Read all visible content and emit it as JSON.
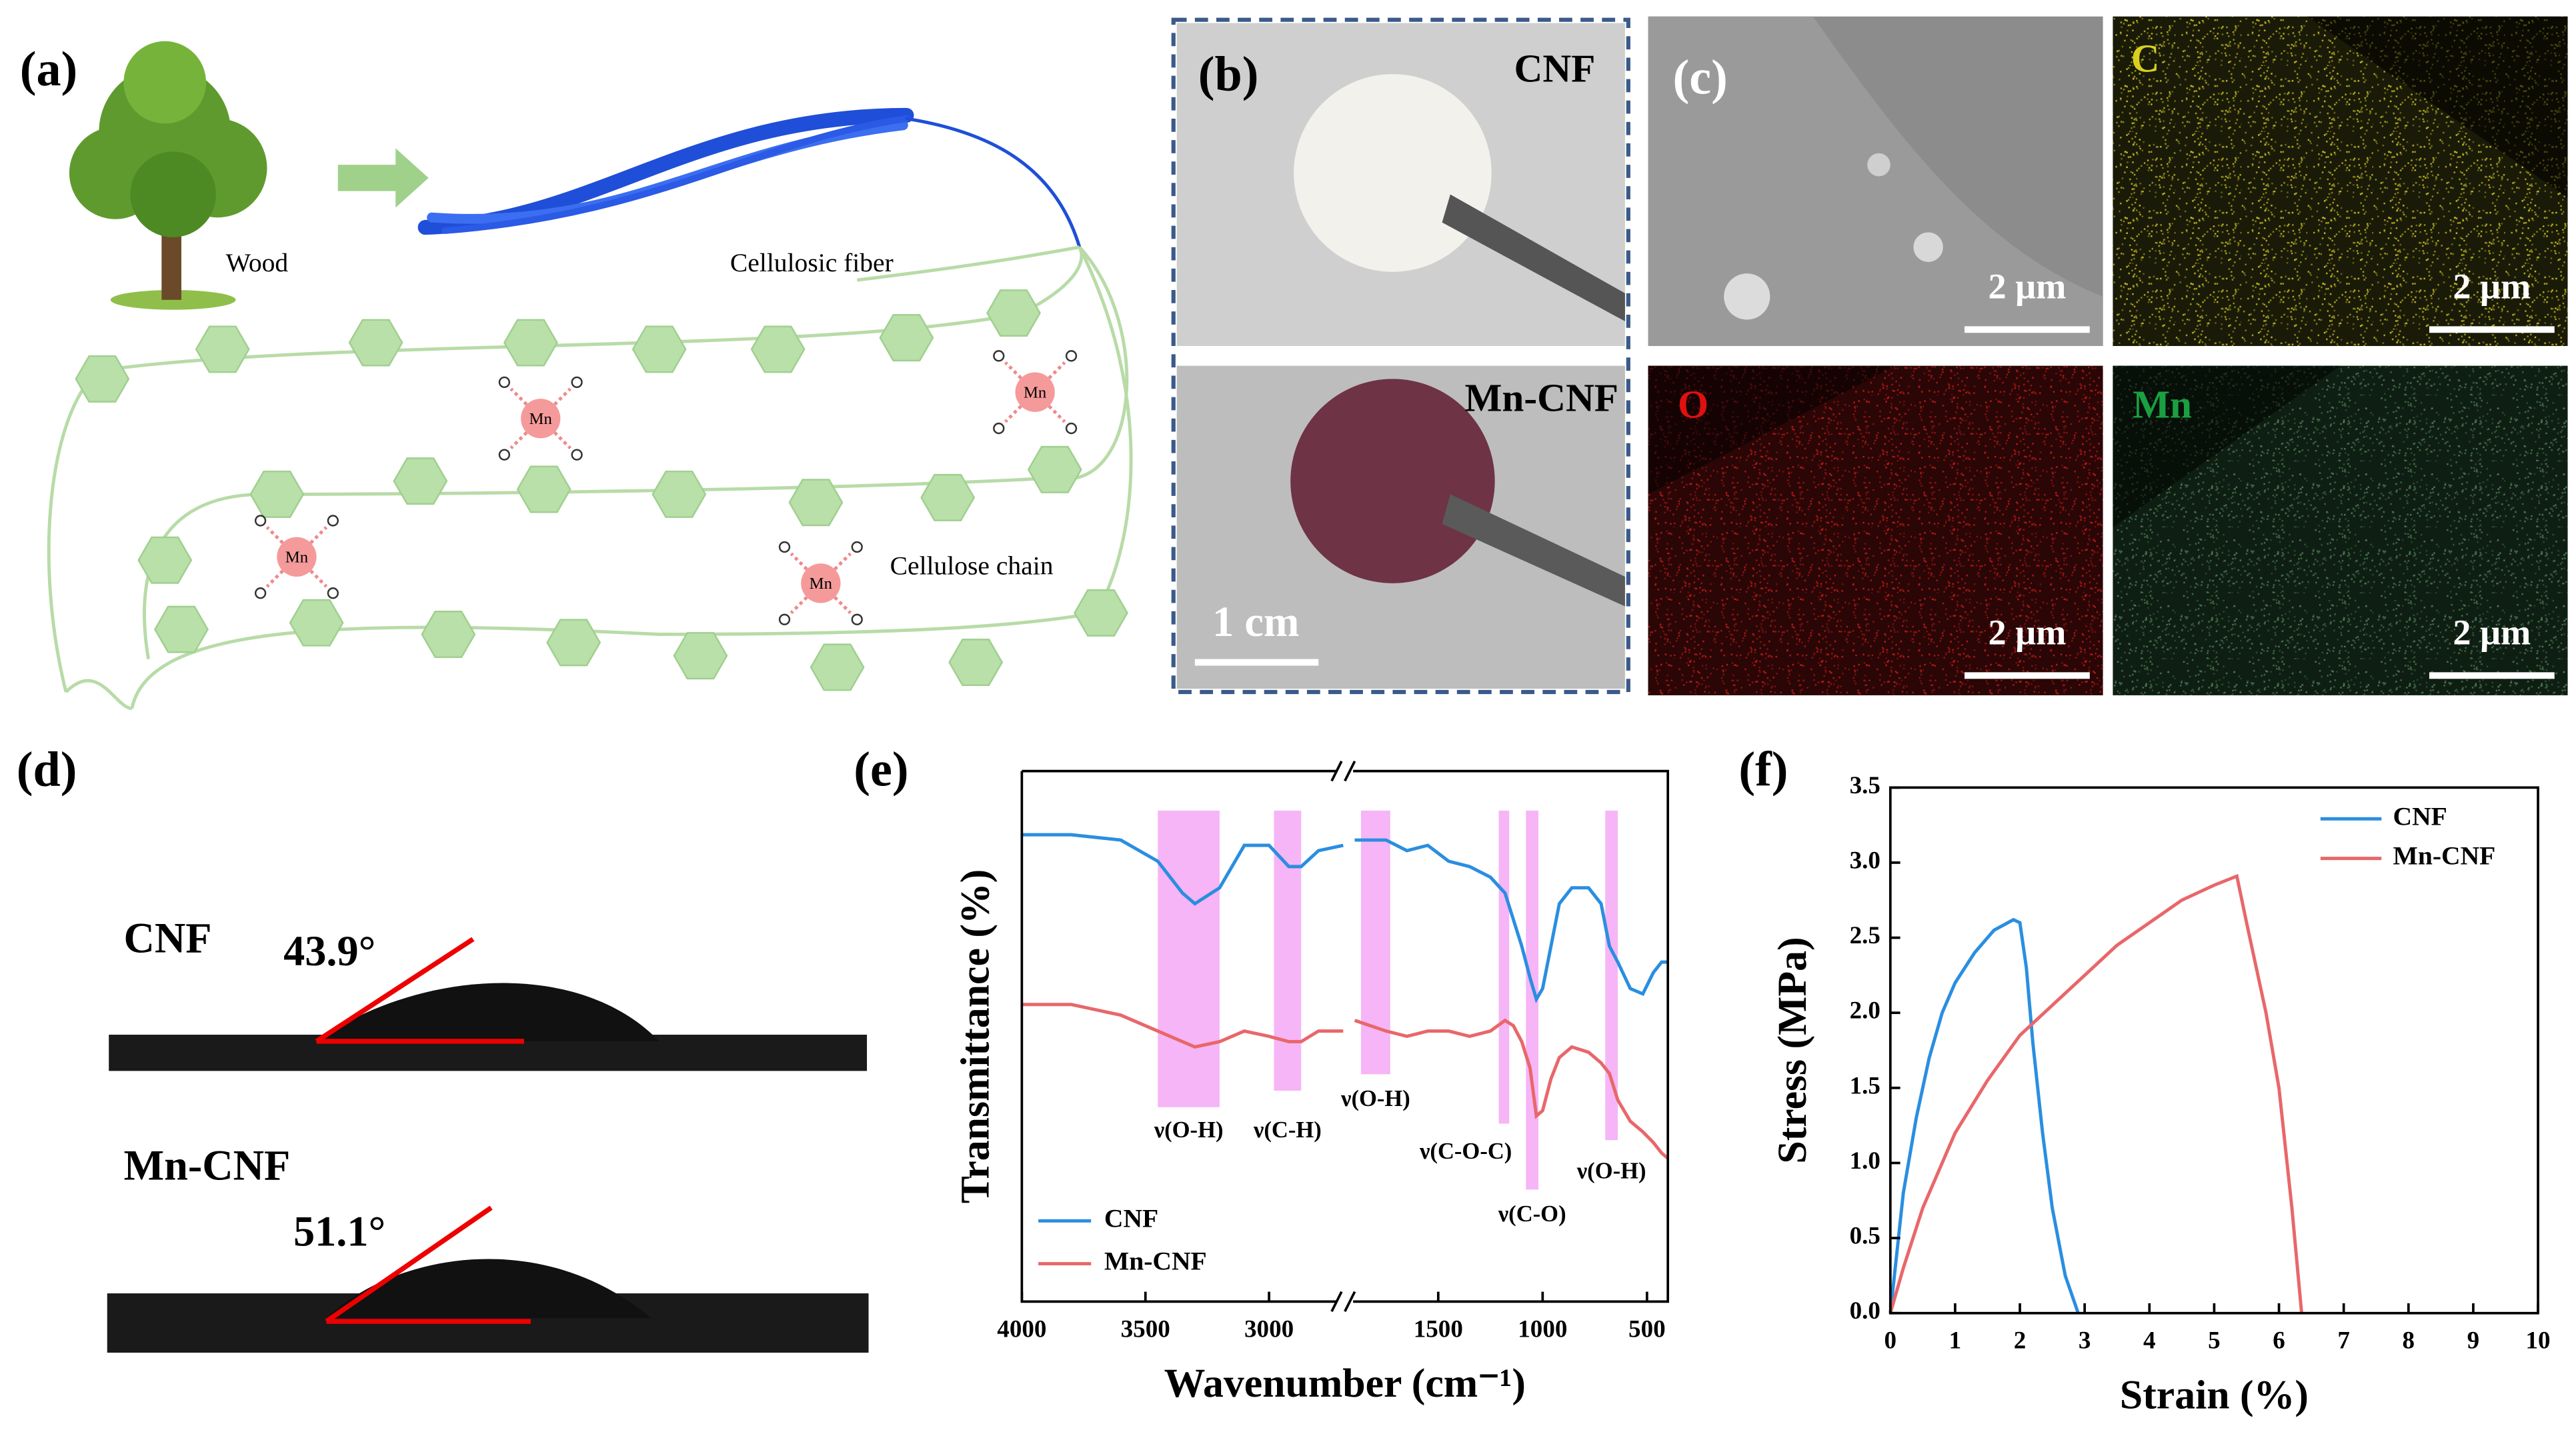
{
  "panels": {
    "a": {
      "label": "(a)",
      "wood": "Wood",
      "fiber": "Cellulosic fiber",
      "chain": "Cellulose chain",
      "ion": "Mn"
    },
    "b": {
      "label": "(b)",
      "top": "CNF",
      "bottom": "Mn-CNF",
      "scale": "1 cm"
    },
    "c": {
      "label": "(c)",
      "maps": [
        "C",
        "O",
        "Mn"
      ],
      "scale": "2 μm"
    },
    "d": {
      "label": "(d)",
      "samples": [
        {
          "name": "CNF",
          "angle": "43.9°"
        },
        {
          "name": "Mn-CNF",
          "angle": "51.1°"
        }
      ]
    },
    "e": {
      "label": "(e)"
    },
    "f": {
      "label": "(f)"
    }
  },
  "chart_data": [
    {
      "type": "line",
      "xlabel": "Wavenumber (cm⁻¹)",
      "ylabel": "Transmittance (%)",
      "xlim": [
        [
          4000,
          2700
        ],
        [
          1900,
          400
        ]
      ],
      "ylim": [
        0,
        100
      ],
      "xticks": [
        4000,
        3500,
        3000,
        1500,
        1000,
        500
      ],
      "legend": "lower left",
      "bands": [
        {
          "label": "ν(O-H)",
          "range": [
            3450,
            3200
          ]
        },
        {
          "label": "ν(C-H)",
          "range": [
            2980,
            2870
          ]
        },
        {
          "label": "ν(O-H)",
          "range": [
            1870,
            1730
          ]
        },
        {
          "label": "ν(C-O-C)",
          "range": [
            1210,
            1160
          ]
        },
        {
          "label": "ν(C-O)",
          "range": [
            1080,
            1020
          ]
        },
        {
          "label": "ν(O-H)",
          "range": [
            700,
            640
          ]
        }
      ],
      "x": [
        4000,
        3800,
        3600,
        3450,
        3350,
        3300,
        3200,
        3100,
        3000,
        2920,
        2870,
        2800,
        2700,
        null,
        1900,
        1750,
        1650,
        1550,
        1450,
        1350,
        1250,
        1180,
        1140,
        1100,
        1060,
        1030,
        1000,
        960,
        920,
        860,
        780,
        720,
        680,
        640,
        580,
        520,
        470,
        430,
        400
      ],
      "series": [
        {
          "name": "CNF",
          "color": "#2a8ee0",
          "values": [
            88,
            88,
            87,
            83,
            77,
            75,
            78,
            86,
            86,
            82,
            82,
            85,
            86,
            null,
            87,
            87,
            85,
            86,
            83,
            82,
            80,
            77,
            72,
            67,
            61,
            57,
            59,
            67,
            75,
            78,
            78,
            75,
            67,
            64,
            59,
            58,
            62,
            64,
            64
          ]
        },
        {
          "name": "Mn-CNF",
          "color": "#e8676a",
          "values": [
            56,
            56,
            54,
            51,
            49,
            48,
            49,
            51,
            50,
            49,
            49,
            51,
            51,
            null,
            53,
            51,
            50,
            51,
            51,
            50,
            51,
            53,
            52,
            49,
            44,
            35,
            36,
            42,
            46,
            48,
            47,
            45,
            43,
            38,
            34,
            32,
            30,
            28,
            27
          ]
        }
      ]
    },
    {
      "type": "line",
      "xlabel": "Strain (%)",
      "ylabel": "Stress  (MPa)",
      "xlim": [
        0,
        10
      ],
      "ylim": [
        0,
        3.5
      ],
      "xticks": [
        0,
        1,
        2,
        3,
        4,
        5,
        6,
        7,
        8,
        9,
        10
      ],
      "yticks": [
        {
          "value": 0,
          "label": "0.0"
        },
        0.5,
        {
          "value": 1,
          "label": "1.0"
        },
        1.5,
        {
          "value": 2,
          "label": "2.0"
        },
        2.5,
        {
          "value": 3,
          "label": "3.0"
        },
        3.5
      ],
      "legend": "upper right",
      "series": [
        {
          "name": "CNF",
          "color": "#2a8ee0",
          "x": [
            0,
            0.1,
            0.2,
            0.4,
            0.6,
            0.8,
            1.0,
            1.3,
            1.6,
            1.9,
            2.0,
            2.1,
            2.2,
            2.35,
            2.5,
            2.7,
            2.9
          ],
          "values": [
            0,
            0.4,
            0.8,
            1.3,
            1.7,
            2.0,
            2.2,
            2.4,
            2.55,
            2.62,
            2.6,
            2.3,
            1.8,
            1.2,
            0.7,
            0.25,
            0
          ]
        },
        {
          "name": "Mn-CNF",
          "color": "#e8676a",
          "x": [
            0,
            0.2,
            0.5,
            1,
            1.5,
            2,
            2.5,
            3,
            3.5,
            4,
            4.5,
            5,
            5.35,
            5.5,
            5.8,
            6.0,
            6.2,
            6.35
          ],
          "values": [
            0,
            0.3,
            0.7,
            1.2,
            1.55,
            1.85,
            2.05,
            2.25,
            2.45,
            2.6,
            2.75,
            2.85,
            2.91,
            2.6,
            2.0,
            1.5,
            0.7,
            0
          ]
        }
      ]
    }
  ]
}
